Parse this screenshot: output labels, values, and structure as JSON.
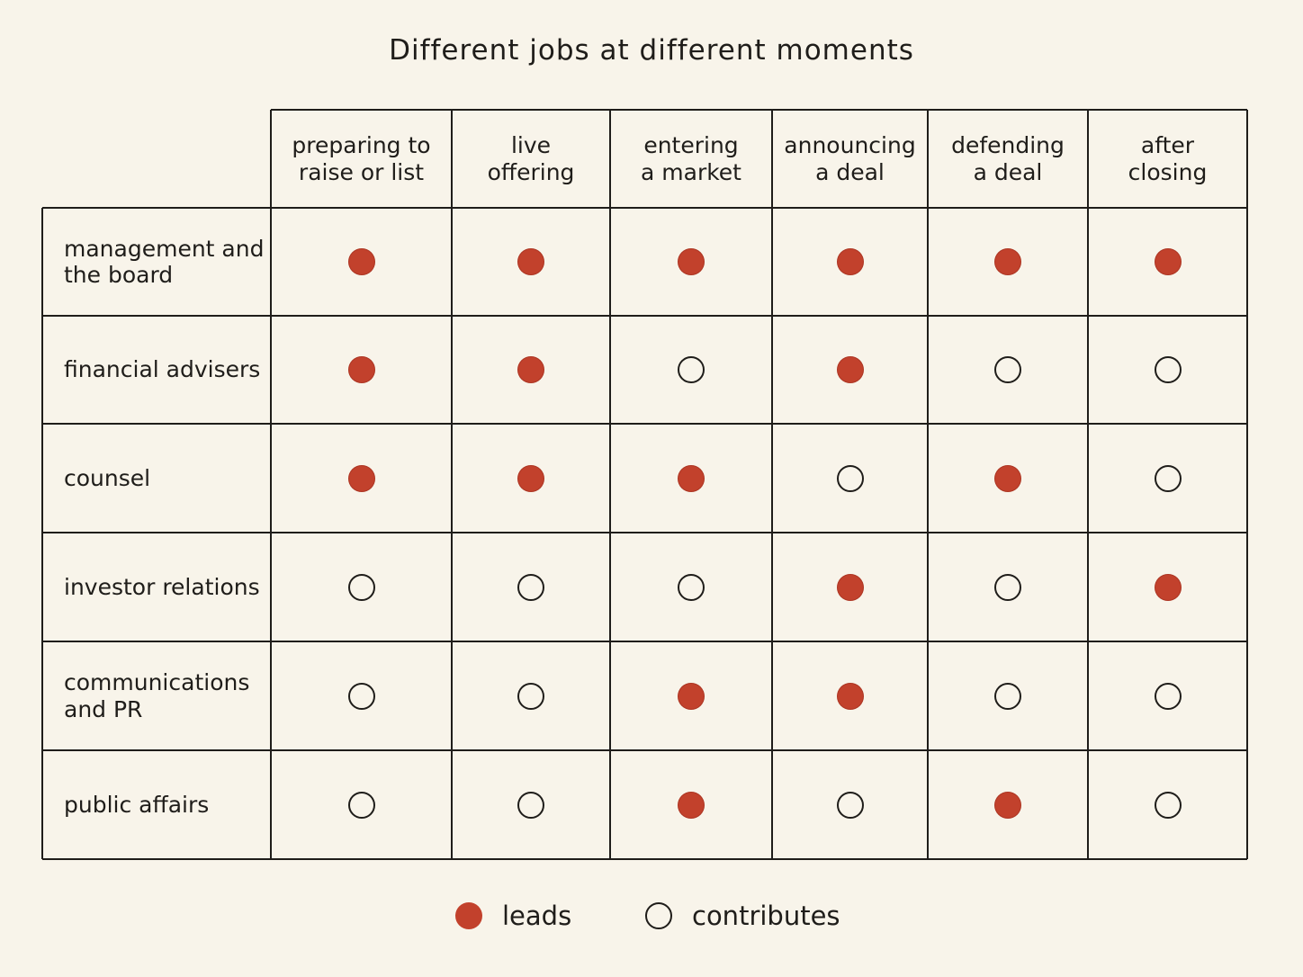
{
  "title": "Different jobs at different moments",
  "columns": [
    "preparing to\nraise or list",
    "live\noffering",
    "entering\na market",
    "announcing\na deal",
    "defending\na deal",
    "after\nclosing"
  ],
  "rows": [
    "management and\nthe board",
    "financial advisers",
    "counsel",
    "investor relations",
    "communications\nand PR",
    "public affairs"
  ],
  "matrix": [
    [
      "leads",
      "leads",
      "leads",
      "leads",
      "leads",
      "leads"
    ],
    [
      "leads",
      "leads",
      "contributes",
      "leads",
      "contributes",
      "contributes"
    ],
    [
      "leads",
      "leads",
      "leads",
      "contributes",
      "leads",
      "contributes"
    ],
    [
      "contributes",
      "contributes",
      "contributes",
      "leads",
      "contributes",
      "leads"
    ],
    [
      "contributes",
      "contributes",
      "leads",
      "leads",
      "contributes",
      "contributes"
    ],
    [
      "contributes",
      "contributes",
      "leads",
      "contributes",
      "leads",
      "contributes"
    ]
  ],
  "legend": {
    "leads": "leads",
    "contributes": "contributes"
  },
  "colors": {
    "background": "#f8f4ea",
    "lead": "#c2412c",
    "line": "#1f1d1a"
  }
}
